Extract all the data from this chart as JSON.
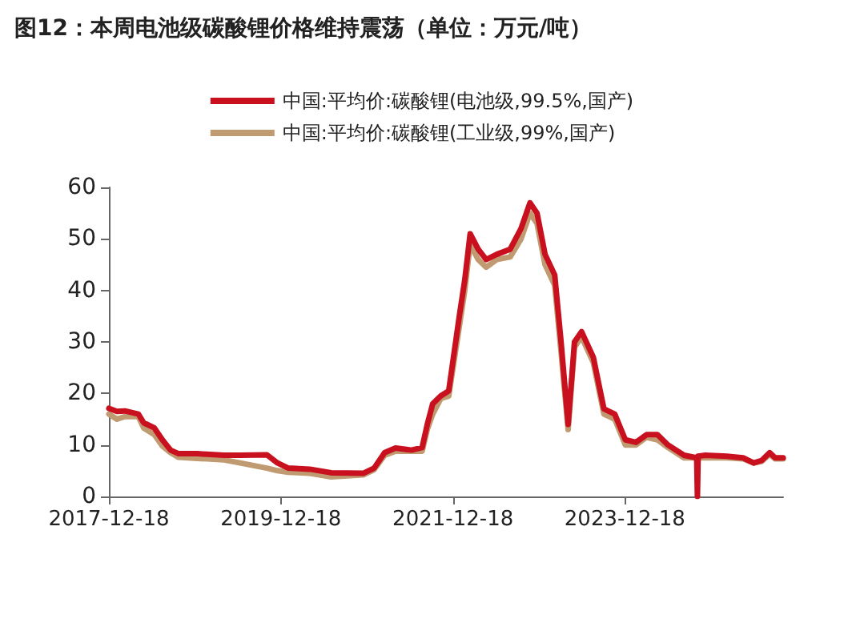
{
  "chart_data": {
    "type": "line",
    "title": "图12：本周电池级碳酸锂价格维持震荡（单位：万元/吨）",
    "x": [
      "2017-12-18",
      "2018-01-21",
      "2018-02-24",
      "2018-04-22",
      "2018-05-15",
      "2018-06-29",
      "2018-08-02",
      "2018-09-06",
      "2018-10-10",
      "2018-12-28",
      "2019-04-21",
      "2019-06-28",
      "2019-10-20",
      "2019-12-04",
      "2020-01-19",
      "2020-04-19",
      "2020-07-19",
      "2020-12-02",
      "2021-01-17",
      "2021-03-03",
      "2021-04-18",
      "2021-06-25",
      "2021-08-09",
      "2021-08-31",
      "2021-09-23",
      "2021-10-27",
      "2021-11-30",
      "2022-01-14",
      "2022-02-06",
      "2022-03-01",
      "2022-04-04",
      "2022-05-08",
      "2022-06-22",
      "2022-08-18",
      "2022-10-03",
      "2022-11-10",
      "2022-12-10",
      "2023-01-13",
      "2023-02-23",
      "2023-03-22",
      "2023-04-21",
      "2023-05-18",
      "2023-06-17",
      "2023-08-06",
      "2023-09-20",
      "2023-11-05",
      "2023-12-20",
      "2024-02-03",
      "2024-03-19",
      "2024-05-04",
      "2024-06-18",
      "2024-08-25",
      "2024-10-18",
      "2024-10-21",
      "2024-10-24",
      "2024-11-24",
      "2025-02-23",
      "2025-05-03",
      "2025-06-17",
      "2025-07-21",
      "2025-08-24",
      "2025-09-16",
      "2025-10-20"
    ],
    "series": [
      {
        "name": "中国:平均价:碳酸锂(电池级,99.5%,国产)",
        "color": "#c8101e",
        "values": [
          17.1,
          16.5,
          16.6,
          16,
          14.3,
          13.3,
          11,
          9,
          8.3,
          8.3,
          8,
          8,
          8.1,
          6.5,
          5.5,
          5.3,
          4.6,
          4.5,
          5.5,
          8.5,
          9.4,
          9,
          9.5,
          14,
          18,
          19.5,
          20.5,
          35,
          42,
          51,
          48,
          46,
          47,
          48,
          52,
          57,
          55,
          47,
          43,
          30,
          14,
          30,
          32,
          27,
          17,
          16,
          11,
          10.5,
          12,
          12,
          10,
          8,
          7.5,
          0,
          7.8,
          8,
          7.8,
          7.5,
          6.5,
          7,
          8.5,
          7.5,
          7.5
        ]
      },
      {
        "name": "中国:平均价:碳酸锂(工业级,99%,国产)",
        "color": "#c09a70",
        "values": [
          16,
          15,
          15.5,
          15.5,
          13.3,
          12,
          9.8,
          8.5,
          7.6,
          7.4,
          7.1,
          6.5,
          5.5,
          5,
          4.7,
          4.5,
          3.8,
          4.2,
          5.2,
          8,
          8.8,
          8.8,
          8.8,
          13,
          16,
          19,
          19.5,
          33,
          40,
          49,
          46,
          44.5,
          46,
          46.5,
          50,
          55,
          53,
          45,
          41,
          28,
          13,
          29,
          31,
          26,
          16,
          15,
          10,
          10,
          11.5,
          11,
          9.5,
          7.5,
          7.5,
          7.5,
          7.5,
          7.5,
          7.5,
          7.3,
          6.5,
          6.8,
          8.2,
          7.3,
          7.3
        ]
      }
    ],
    "xlim": [
      "2017-12-18",
      "2025-10-20"
    ],
    "xticks": [
      "2017-12-18",
      "2019-12-18",
      "2021-12-18",
      "2023-12-18"
    ],
    "ylim": [
      0,
      60
    ],
    "yticks": [
      0,
      10,
      20,
      30,
      40,
      50,
      60
    ],
    "legend": "top",
    "grid": false,
    "marker": "none",
    "line_style": "solid"
  }
}
